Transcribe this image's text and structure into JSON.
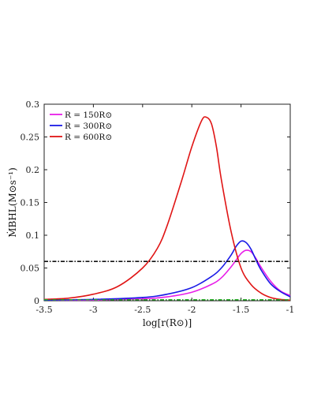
{
  "chart_data": {
    "type": "line",
    "xlabel": "log[r(R⊙)]",
    "ylabel": "ṀBHL(M⊙s⁻¹)",
    "xlim": [
      -3.5,
      -1.0
    ],
    "ylim": [
      0,
      0.3
    ],
    "xticks": [
      -3.5,
      -3,
      -2.5,
      -2,
      -1.5,
      -1
    ],
    "xtick_labels": [
      "-3.5",
      "-3",
      "-2.5",
      "-2",
      "-1.5",
      "-1"
    ],
    "yticks": [
      0,
      0.05,
      0.1,
      0.15,
      0.2,
      0.25,
      0.3
    ],
    "ytick_labels": [
      "0",
      "0.05",
      "0.1",
      "0.15",
      "0.2",
      "0.25",
      "0.3"
    ],
    "grid": false,
    "legend_position": "top-left",
    "series": [
      {
        "name": "R = 150R⊙",
        "color": "#e81ee8",
        "style": "solid",
        "x": [
          -3.5,
          -3.0,
          -2.5,
          -2.25,
          -2.0,
          -1.8,
          -1.7,
          -1.6,
          -1.55,
          -1.5,
          -1.45,
          -1.4,
          -1.35,
          -1.3,
          -1.2,
          -1.1,
          -1.0
        ],
        "y": [
          0.001,
          0.001,
          0.003,
          0.006,
          0.013,
          0.025,
          0.035,
          0.052,
          0.062,
          0.072,
          0.077,
          0.075,
          0.065,
          0.052,
          0.03,
          0.015,
          0.008
        ]
      },
      {
        "name": "R = 300R⊙",
        "color": "#1a1ae6",
        "style": "solid",
        "x": [
          -3.5,
          -3.0,
          -2.5,
          -2.25,
          -2.0,
          -1.8,
          -1.7,
          -1.6,
          -1.55,
          -1.5,
          -1.45,
          -1.4,
          -1.35,
          -1.3,
          -1.2,
          -1.1,
          -1.0
        ],
        "y": [
          0.001,
          0.002,
          0.005,
          0.01,
          0.02,
          0.037,
          0.05,
          0.07,
          0.083,
          0.091,
          0.089,
          0.079,
          0.063,
          0.048,
          0.026,
          0.014,
          0.006
        ]
      },
      {
        "name": "R = 600R⊙",
        "color": "#e01515",
        "style": "solid",
        "x": [
          -3.5,
          -3.25,
          -3.0,
          -2.75,
          -2.5,
          -2.35,
          -2.25,
          -2.1,
          -2.0,
          -1.9,
          -1.85,
          -1.8,
          -1.75,
          -1.7,
          -1.6,
          -1.5,
          -1.4,
          -1.3,
          -1.2,
          -1.1,
          -1.0
        ],
        "y": [
          0.002,
          0.004,
          0.01,
          0.022,
          0.05,
          0.08,
          0.115,
          0.185,
          0.235,
          0.275,
          0.28,
          0.27,
          0.235,
          0.185,
          0.105,
          0.05,
          0.025,
          0.012,
          0.005,
          0.002,
          0.001
        ]
      },
      {
        "name": "",
        "color": "#111111",
        "style": "dashdot",
        "x": [
          -3.5,
          -1.0
        ],
        "y": [
          0.06,
          0.06
        ]
      },
      {
        "name": "",
        "color": "#22aa22",
        "style": "dashdot",
        "x": [
          -3.5,
          -1.0
        ],
        "y": [
          0.0015,
          0.0015
        ]
      }
    ]
  }
}
